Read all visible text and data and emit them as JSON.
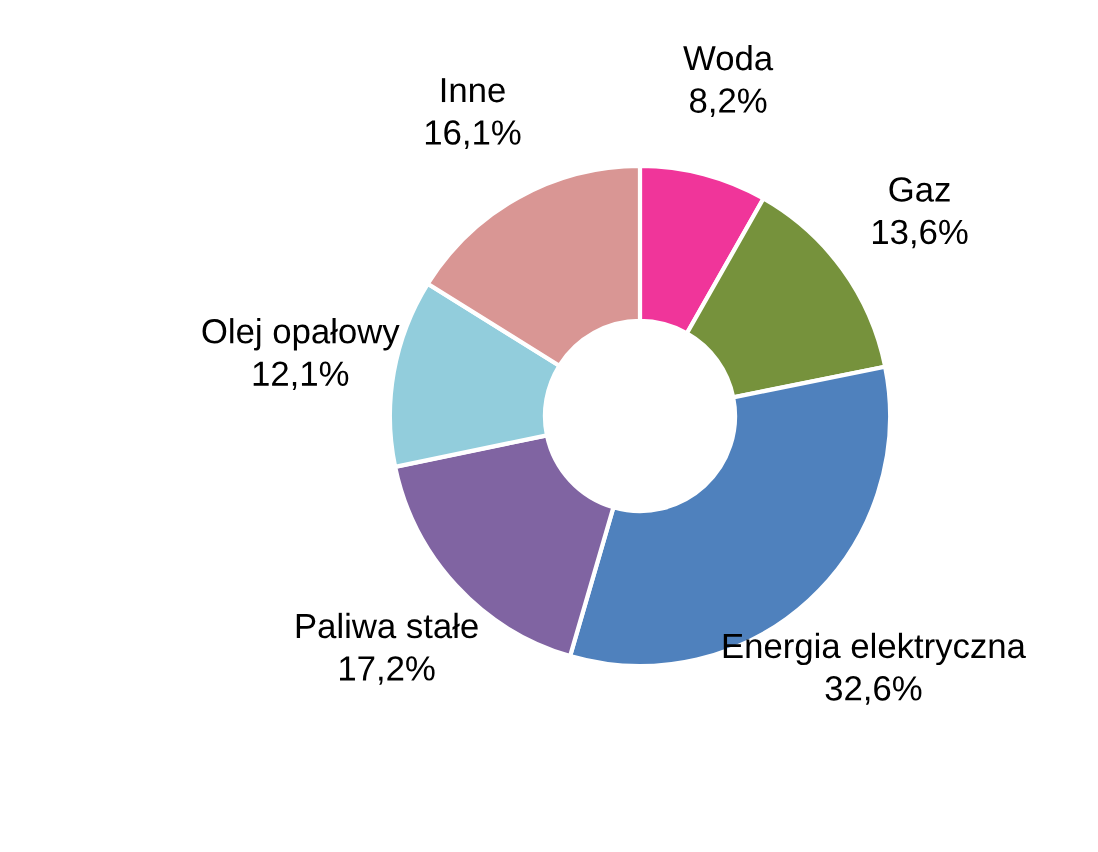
{
  "chart_data": {
    "type": "donut",
    "categories": [
      "Woda",
      "Gaz",
      "Energia elektryczna",
      "Paliwa stałe",
      "Olej opałowy",
      "Inne"
    ],
    "values": [
      8.2,
      13.6,
      32.6,
      17.2,
      12.1,
      16.1
    ],
    "value_labels": [
      "8,2%",
      "13,6%",
      "32,6%",
      "17,2%",
      "12,1%",
      "16,1%"
    ],
    "colors": [
      "#f0359a",
      "#76923c",
      "#4f81bd",
      "#8064a2",
      "#92cddc",
      "#d99694"
    ],
    "legend": false
  }
}
